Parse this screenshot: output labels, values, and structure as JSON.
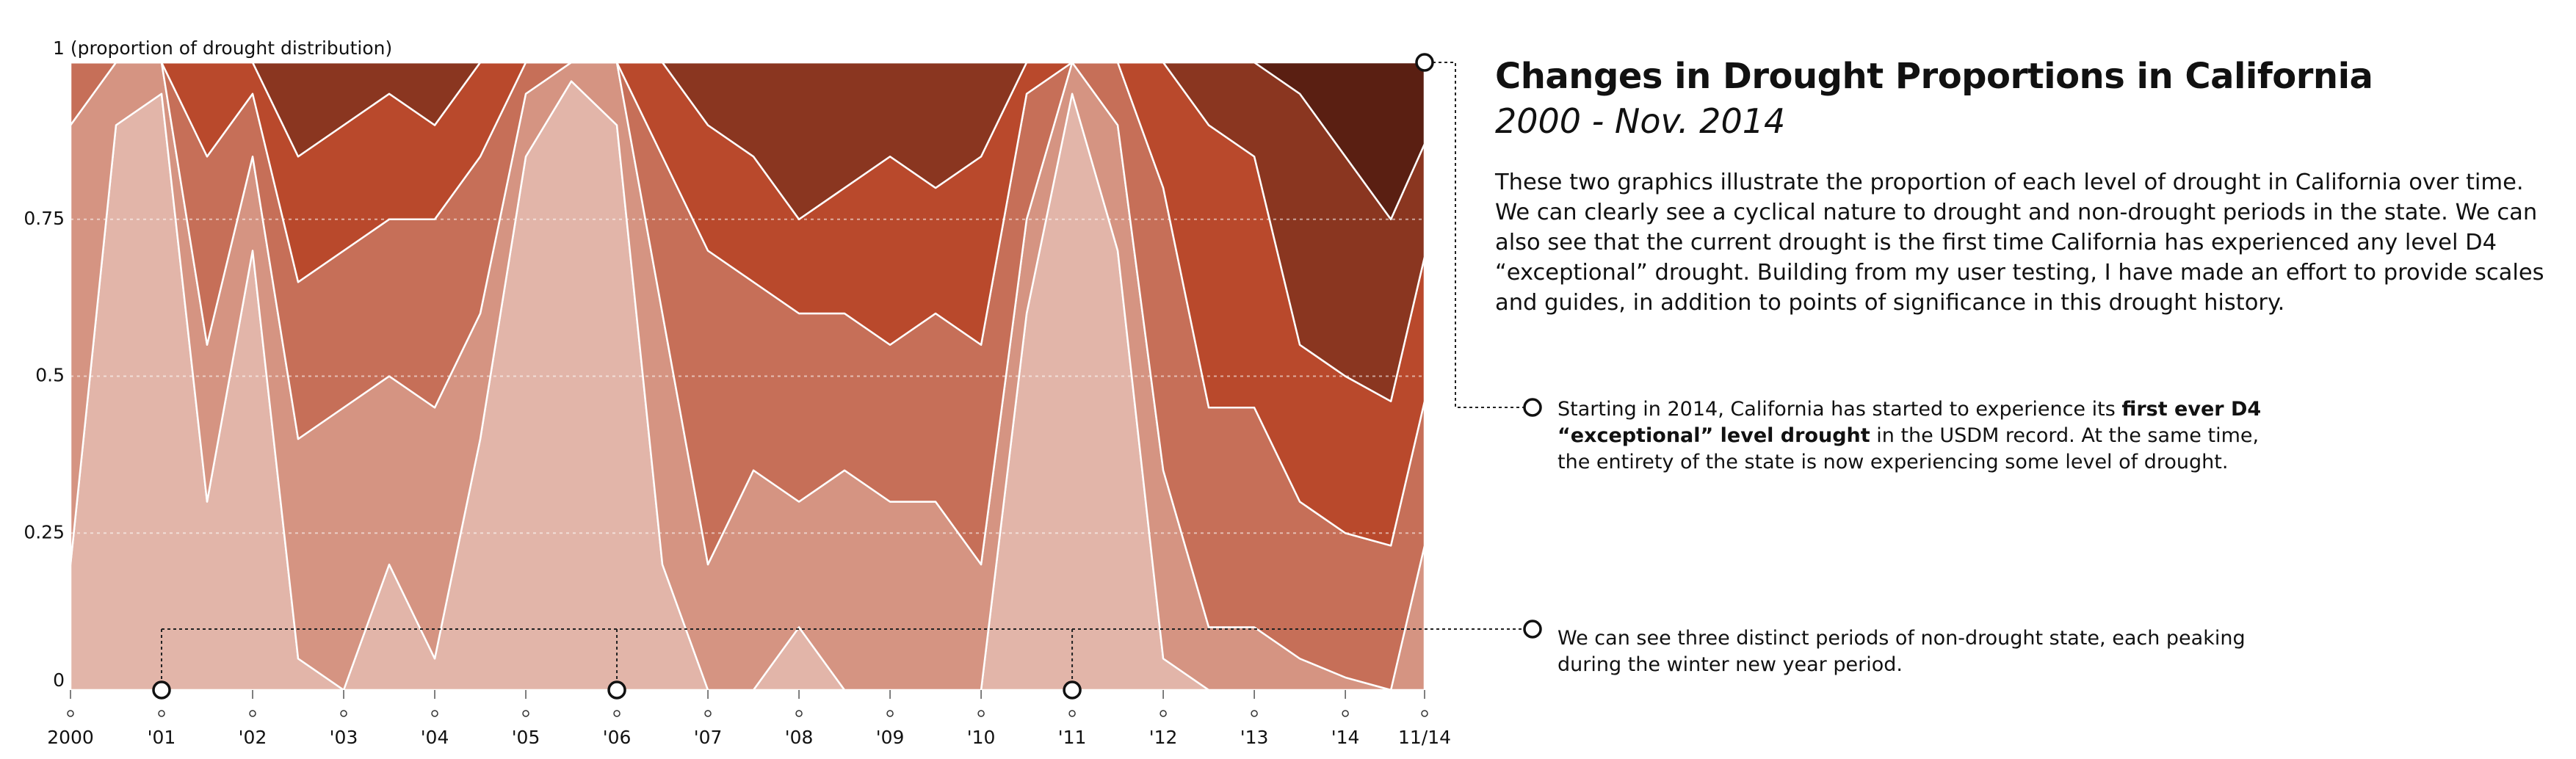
{
  "chart_data": {
    "type": "stacked-area",
    "title": "Changes in Drought Proportions in California",
    "subtitle": "2000 - Nov. 2014",
    "description": "These two graphics illustrate the proportion of each level of drought in California over time. We can clearly see a cyclical nature to drought and non-drought periods in the state. We can also see that the current drought is the first time California has experienced any level D4 “exceptional” drought. Building from my user testing, I have made an effort to provide scales and guides, in addition to points of significance in this drought history.",
    "annotations": [
      {
        "parts": [
          "Starting in 2014, California has started to experience its ",
          "first ever D4 “exceptional” level drought",
          " in the USDM record. At the same time, the entirety of the state is now experiencing some level of drought."
        ]
      },
      {
        "parts": [
          "We can see three distinct periods of non-drought state, each peaking during the winter new year period."
        ]
      }
    ],
    "x": [
      2000,
      2000.5,
      2001,
      2001.5,
      2002,
      2002.5,
      2003,
      2003.5,
      2004,
      2004.5,
      2005,
      2005.5,
      2006,
      2006.5,
      2007,
      2007.5,
      2008,
      2008.5,
      2009,
      2009.5,
      2010,
      2010.5,
      2011,
      2011.5,
      2012,
      2012.5,
      2013,
      2013.5,
      2014,
      2014.5,
      2014.87
    ],
    "series": [
      {
        "color": "#e2b5a9",
        "values": [
          0.2,
          0.9,
          0.95,
          0.3,
          0.7,
          0.05,
          0,
          0.2,
          0.05,
          0.4,
          0.85,
          0.97,
          0.9,
          0.2,
          0,
          0,
          0.1,
          0,
          0,
          0,
          0,
          0.6,
          0.95,
          0.7,
          0.05,
          0,
          0,
          0,
          0,
          0,
          0
        ]
      },
      {
        "color": "#d59482",
        "values": [
          0.7,
          0.1,
          0.05,
          0.25,
          0.15,
          0.35,
          0.45,
          0.3,
          0.4,
          0.2,
          0.1,
          0.03,
          0.1,
          0.4,
          0.2,
          0.35,
          0.2,
          0.35,
          0.3,
          0.3,
          0.2,
          0.15,
          0.05,
          0.2,
          0.3,
          0.1,
          0.1,
          0.05,
          0.02,
          0,
          0.23
        ]
      },
      {
        "color": "#c66f58",
        "values": [
          0.1,
          0,
          0,
          0.3,
          0.1,
          0.25,
          0.25,
          0.25,
          0.3,
          0.25,
          0.05,
          0,
          0,
          0.25,
          0.5,
          0.3,
          0.3,
          0.25,
          0.25,
          0.3,
          0.35,
          0.2,
          0,
          0.1,
          0.45,
          0.35,
          0.35,
          0.25,
          0.23,
          0.23,
          0.23
        ]
      },
      {
        "color": "#b9492c",
        "values": [
          0,
          0,
          0,
          0.15,
          0.05,
          0.2,
          0.2,
          0.2,
          0.15,
          0.15,
          0,
          0,
          0,
          0.15,
          0.2,
          0.2,
          0.15,
          0.2,
          0.3,
          0.2,
          0.3,
          0.05,
          0,
          0,
          0.2,
          0.45,
          0.4,
          0.25,
          0.25,
          0.23,
          0.23
        ]
      },
      {
        "color": "#8a3620",
        "values": [
          0,
          0,
          0,
          0,
          0,
          0.15,
          0.1,
          0.05,
          0.1,
          0,
          0,
          0,
          0,
          0,
          0.1,
          0.15,
          0.25,
          0.2,
          0.15,
          0.2,
          0.15,
          0,
          0,
          0,
          0,
          0.1,
          0.15,
          0.4,
          0.35,
          0.29,
          0.18
        ]
      },
      {
        "color": "#5a1f12",
        "values": [
          0,
          0,
          0,
          0,
          0,
          0,
          0,
          0,
          0,
          0,
          0,
          0,
          0,
          0,
          0,
          0,
          0,
          0,
          0,
          0,
          0,
          0,
          0,
          0,
          0,
          0,
          0,
          0.05,
          0.15,
          0.25,
          0.13
        ]
      }
    ],
    "xlim": [
      2000,
      2014.87
    ],
    "xticks": [
      2000,
      {
        "value": 2001,
        "label": "'01"
      },
      {
        "value": 2002,
        "label": "'02"
      },
      {
        "value": 2003,
        "label": "'03"
      },
      {
        "value": 2004,
        "label": "'04"
      },
      {
        "value": 2005,
        "label": "'05"
      },
      {
        "value": 2006,
        "label": "'06"
      },
      {
        "value": 2007,
        "label": "'07"
      },
      {
        "value": 2008,
        "label": "'08"
      },
      {
        "value": 2009,
        "label": "'09"
      },
      {
        "value": 2010,
        "label": "'10"
      },
      {
        "value": 2011,
        "label": "'11"
      },
      {
        "value": 2012,
        "label": "'12"
      },
      {
        "value": 2013,
        "label": "'13"
      },
      {
        "value": 2014,
        "label": "'14"
      },
      {
        "value": 2014.87,
        "label": "11/14"
      }
    ],
    "ylim": [
      0,
      1
    ],
    "yticks": [
      0,
      0.25,
      0.5,
      0.75,
      {
        "value": 1,
        "label": "1 (proportion of drought distribution)"
      }
    ],
    "grid": true
  }
}
